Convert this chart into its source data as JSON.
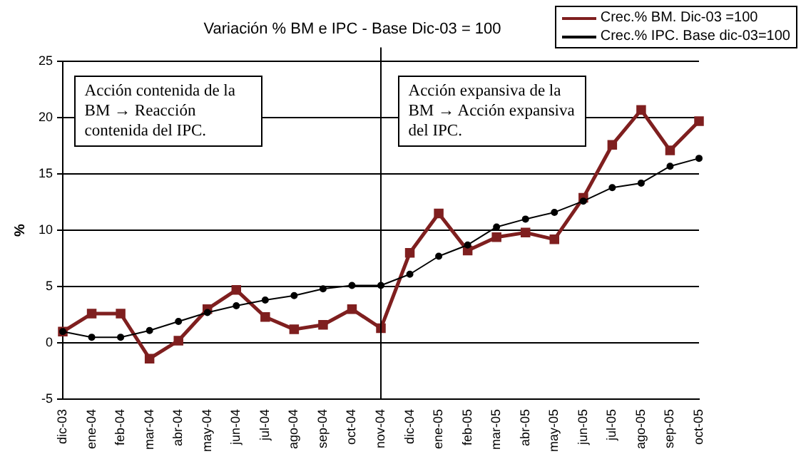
{
  "chart_data": {
    "type": "line",
    "title": "Variación % BM e IPC - Base Dic-03 = 100",
    "ylabel": "%",
    "categories": [
      "dic-03",
      "ene-04",
      "feb-04",
      "mar-04",
      "abr-04",
      "may-04",
      "jun-04",
      "jul-04",
      "ago-04",
      "sep-04",
      "oct-04",
      "nov-04",
      "dic-04",
      "ene-05",
      "feb-05",
      "mar-05",
      "abr-05",
      "may-05",
      "jun-05",
      "jul-05",
      "ago-05",
      "sep-05",
      "oct-05"
    ],
    "series": [
      {
        "name": "Crec.% BM. Dic-03 =100",
        "color": "#7f1f1f",
        "marker": "square",
        "values": [
          1.0,
          2.6,
          2.6,
          -1.4,
          0.2,
          3.0,
          4.7,
          2.3,
          1.2,
          1.6,
          3.0,
          1.3,
          8.0,
          11.5,
          8.2,
          9.4,
          9.8,
          9.2,
          12.9,
          17.6,
          20.7,
          17.1,
          19.7
        ]
      },
      {
        "name": "Crec.% IPC. Base dic-03=100",
        "color": "#000000",
        "marker": "circle",
        "values": [
          1.0,
          0.5,
          0.5,
          1.1,
          1.9,
          2.7,
          3.3,
          3.8,
          4.2,
          4.8,
          5.1,
          5.1,
          6.1,
          7.7,
          8.7,
          10.3,
          11.0,
          11.6,
          12.6,
          13.8,
          14.2,
          15.7,
          16.4
        ]
      }
    ],
    "ylim": [
      -5,
      25
    ],
    "yticks": [
      -5,
      0,
      5,
      10,
      15,
      20,
      25
    ],
    "grid": "y",
    "legend": "top right",
    "ref_lines": [
      {
        "axis": "x",
        "value": "nov-04"
      }
    ],
    "annotations": [
      "Acción contenida de la BM → Reacción contenida del IPC.",
      "Acción expansiva de la BM → Acción expansiva del IPC."
    ]
  }
}
